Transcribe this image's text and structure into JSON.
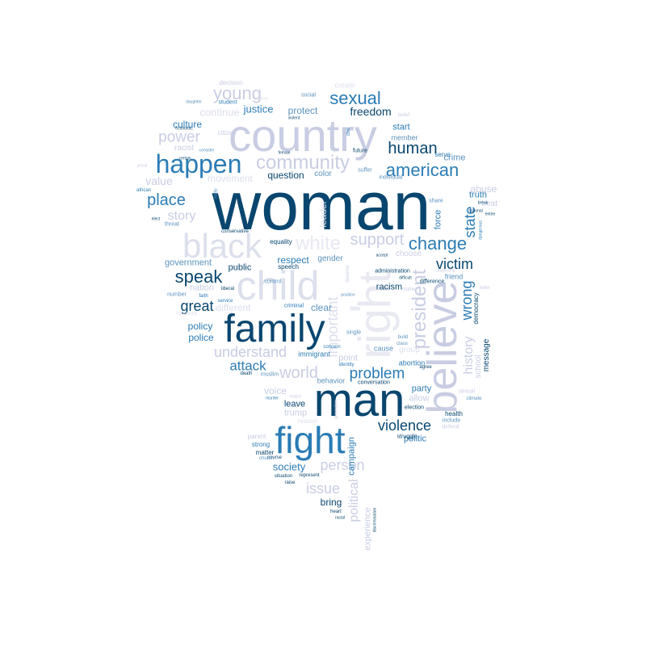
{
  "palette": {
    "navy": "#08466f",
    "blue": "#2b7cb5",
    "mid": "#5b92be",
    "lavender": "#c9cde3",
    "pale": "#dcdfec",
    "faint": "#e8e9f2"
  },
  "words": [
    {
      "text": "woman",
      "color": "#08466f"
    },
    {
      "text": "country",
      "color": "#c9cde3"
    },
    {
      "text": "believe",
      "color": "#c9cde3"
    },
    {
      "text": "man",
      "color": "#08466f"
    },
    {
      "text": "right",
      "color": "#e8e9f2"
    },
    {
      "text": "family",
      "color": "#08466f"
    },
    {
      "text": "child",
      "color": "#dcdfec"
    },
    {
      "text": "black",
      "color": "#dcdfec"
    },
    {
      "text": "fight",
      "color": "#2b7cb5"
    },
    {
      "text": "happen",
      "color": "#2b7cb5"
    },
    {
      "text": "community",
      "color": "#c9cde3"
    },
    {
      "text": "american",
      "color": "#2b7cb5"
    },
    {
      "text": "sexual",
      "color": "#2b7cb5"
    },
    {
      "text": "president",
      "color": "#c9cde3"
    },
    {
      "text": "young",
      "color": "#c9cde3"
    },
    {
      "text": "human",
      "color": "#08466f"
    },
    {
      "text": "change",
      "color": "#2b7cb5"
    },
    {
      "text": "white",
      "color": "#e8e9f2"
    },
    {
      "text": "support",
      "color": "#c9cde3"
    },
    {
      "text": "speak",
      "color": "#08466f"
    },
    {
      "text": "place",
      "color": "#2b7cb5"
    },
    {
      "text": "story",
      "color": "#c9cde3"
    },
    {
      "text": "power",
      "color": "#c9cde3"
    },
    {
      "text": "great",
      "color": "#08466f"
    },
    {
      "text": "victim",
      "color": "#08466f"
    },
    {
      "text": "wrong",
      "color": "#2b7cb5"
    },
    {
      "text": "history",
      "color": "#c9cde3"
    },
    {
      "text": "state",
      "color": "#2b7cb5"
    },
    {
      "text": "important",
      "color": "#dcdfec"
    },
    {
      "text": "understand",
      "color": "#c9cde3"
    },
    {
      "text": "attack",
      "color": "#2b7cb5"
    },
    {
      "text": "world",
      "color": "#c9cde3"
    },
    {
      "text": "problem",
      "color": "#2b7cb5"
    },
    {
      "text": "violence",
      "color": "#08466f"
    },
    {
      "text": "person",
      "color": "#c9cde3"
    },
    {
      "text": "issue",
      "color": "#c9cde3"
    },
    {
      "text": "society",
      "color": "#2b7cb5"
    },
    {
      "text": "political",
      "color": "#c9cde3"
    },
    {
      "text": "freedom",
      "color": "#08466f"
    },
    {
      "text": "justice",
      "color": "#2b7cb5"
    },
    {
      "text": "protect",
      "color": "#5b92be"
    },
    {
      "text": "value",
      "color": "#c9cde3"
    },
    {
      "text": "culture",
      "color": "#2b7cb5"
    },
    {
      "text": "continue",
      "color": "#dcdfec"
    },
    {
      "text": "movement",
      "color": "#dcdfec"
    },
    {
      "text": "question",
      "color": "#08466f"
    },
    {
      "text": "color",
      "color": "#5b92be"
    },
    {
      "text": "truth",
      "color": "#2b7cb5"
    },
    {
      "text": "abuse",
      "color": "#c9cde3"
    },
    {
      "text": "crime",
      "color": "#5b92be"
    },
    {
      "text": "start",
      "color": "#2b7cb5"
    },
    {
      "text": "member",
      "color": "#5b92be"
    },
    {
      "text": "respect",
      "color": "#2b7cb5"
    },
    {
      "text": "gender",
      "color": "#5b92be"
    },
    {
      "text": "public",
      "color": "#08466f"
    },
    {
      "text": "government",
      "color": "#5b92be"
    },
    {
      "text": "policy",
      "color": "#2b7cb5"
    },
    {
      "text": "police",
      "color": "#2b7cb5"
    },
    {
      "text": "different",
      "color": "#dcdfec"
    },
    {
      "text": "racism",
      "color": "#08466f"
    },
    {
      "text": "nation",
      "color": "#c9cde3"
    },
    {
      "text": "clear",
      "color": "#5b92be"
    },
    {
      "text": "leave",
      "color": "#08466f"
    },
    {
      "text": "voice",
      "color": "#c9cde3"
    },
    {
      "text": "trump",
      "color": "#c9cde3"
    },
    {
      "text": "party",
      "color": "#2b7cb5"
    },
    {
      "text": "allow",
      "color": "#c9cde3"
    },
    {
      "text": "politic",
      "color": "#2b7cb5"
    },
    {
      "text": "bring",
      "color": "#08466f"
    },
    {
      "text": "experience",
      "color": "#c9cde3"
    },
    {
      "text": "campaign",
      "color": "#2b7cb5"
    },
    {
      "text": "force",
      "color": "#2b7cb5"
    },
    {
      "text": "friend",
      "color": "#5b92be"
    },
    {
      "text": "choose",
      "color": "#c9cde3"
    },
    {
      "text": "school",
      "color": "#c9cde3"
    },
    {
      "text": "message",
      "color": "#08466f"
    },
    {
      "text": "treat",
      "color": "#c9cde3"
    },
    {
      "text": "leader",
      "color": "#dcdfec"
    },
    {
      "text": "point",
      "color": "#c9cde3"
    },
    {
      "text": "cause",
      "color": "#5b92be"
    },
    {
      "text": "group",
      "color": "#dcdfec"
    },
    {
      "text": "abortion",
      "color": "#2b7cb5"
    },
    {
      "text": "behavior",
      "color": "#5b92be"
    },
    {
      "text": "immigrant",
      "color": "#2b7cb5"
    },
    {
      "text": "equality",
      "color": "#08466f"
    },
    {
      "text": "speech",
      "color": "#08466f"
    },
    {
      "text": "control",
      "color": "#5b92be"
    },
    {
      "text": "muslim",
      "color": "#5b92be"
    },
    {
      "text": "matter",
      "color": "#08466f"
    },
    {
      "text": "strong",
      "color": "#2b7cb5"
    },
    {
      "text": "parent",
      "color": "#c9cde3"
    },
    {
      "text": "health",
      "color": "#08466f"
    },
    {
      "text": "include",
      "color": "#5b92be"
    },
    {
      "text": "defend",
      "color": "#c9cde3"
    },
    {
      "text": "struggle",
      "color": "#08466f"
    },
    {
      "text": "election",
      "color": "#08466f"
    },
    {
      "text": "difference",
      "color": "#08466f"
    },
    {
      "text": "administration",
      "color": "#08466f"
    },
    {
      "text": "individual",
      "color": "#5b92be"
    },
    {
      "text": "future",
      "color": "#08466f"
    },
    {
      "text": "suffer",
      "color": "#5b92be"
    },
    {
      "text": "serve",
      "color": "#2b7cb5"
    },
    {
      "text": "democracy",
      "color": "#08466f"
    },
    {
      "text": "citizen",
      "color": "#c9cde3"
    },
    {
      "text": "racist",
      "color": "#c9cde3"
    },
    {
      "text": "decision",
      "color": "#c9cde3"
    },
    {
      "text": "create",
      "color": "#dcdfec"
    },
    {
      "text": "social",
      "color": "#5b92be"
    },
    {
      "text": "student",
      "color": "#2b7cb5"
    },
    {
      "text": "number",
      "color": "#5b92be"
    },
    {
      "text": "faith",
      "color": "#2b7cb5"
    },
    {
      "text": "moment",
      "color": "#dcdfec"
    },
    {
      "text": "liberal",
      "color": "#08466f"
    },
    {
      "text": "service",
      "color": "#2b7cb5"
    },
    {
      "text": "criminal",
      "color": "#2b7cb5"
    },
    {
      "text": "little",
      "color": "#c9cde3"
    },
    {
      "text": "single",
      "color": "#5b92be"
    },
    {
      "text": "concern",
      "color": "#2b7cb5"
    },
    {
      "text": "identity",
      "color": "#2b7cb5"
    },
    {
      "text": "conversation",
      "color": "#08466f"
    },
    {
      "text": "reason",
      "color": "#dcdfec"
    },
    {
      "text": "course",
      "color": "#08466f"
    },
    {
      "text": "church",
      "color": "#5b92be"
    },
    {
      "text": "situation",
      "color": "#08466f"
    },
    {
      "text": "represent",
      "color": "#08466f"
    },
    {
      "text": "raise",
      "color": "#08466f"
    },
    {
      "text": "heart",
      "color": "#08466f"
    },
    {
      "text": "racial",
      "color": "#08466f"
    },
    {
      "text": "discrimination",
      "color": "#08466f"
    },
    {
      "text": "murder",
      "color": "#2b7cb5"
    },
    {
      "text": "realize",
      "color": "#c9cde3"
    },
    {
      "text": "generation",
      "color": "#c9cde3"
    },
    {
      "text": "death",
      "color": "#08466f"
    },
    {
      "text": "agree",
      "color": "#08466f"
    },
    {
      "text": "class",
      "color": "#5b92be"
    },
    {
      "text": "build",
      "color": "#5b92be"
    },
    {
      "text": "climate",
      "color": "#5b92be"
    },
    {
      "text": "sexual",
      "color": "#c9cde3"
    },
    {
      "text": "voter",
      "color": "#c9cde3"
    },
    {
      "text": "leadership",
      "color": "#c9cde3"
    },
    {
      "text": "mother",
      "color": "#c9cde3"
    },
    {
      "text": "difficult",
      "color": "#08466f"
    },
    {
      "text": "deserve",
      "color": "#c9cde3"
    },
    {
      "text": "share",
      "color": "#5b92be"
    },
    {
      "text": "dangerous",
      "color": "#2b7cb5"
    },
    {
      "text": "entire",
      "color": "#08466f"
    },
    {
      "text": "break",
      "color": "#08466f"
    },
    {
      "text": "national",
      "color": "#08466f"
    },
    {
      "text": "threat",
      "color": "#5b92be"
    },
    {
      "text": "conservative",
      "color": "#08466f"
    },
    {
      "text": "elect",
      "color": "#08466f"
    },
    {
      "text": "african",
      "color": "#2b7cb5"
    },
    {
      "text": "certain",
      "color": "#08466f"
    },
    {
      "text": "economic",
      "color": "#08466f"
    },
    {
      "text": "daughter",
      "color": "#5b92be"
    },
    {
      "text": "blame",
      "color": "#dcdfec"
    },
    {
      "text": "proud",
      "color": "#c9cde3"
    },
    {
      "text": "consider",
      "color": "#5b92be"
    },
    {
      "text": "violent",
      "color": "#08466f"
    },
    {
      "text": "civil",
      "color": "#2b7cb5"
    },
    {
      "text": "female",
      "color": "#08466f"
    },
    {
      "text": "accept",
      "color": "#08466f"
    },
    {
      "text": "reality",
      "color": "#5b92be"
    },
    {
      "text": "position",
      "color": "#5b92be"
    },
    {
      "text": "belief",
      "color": "#c9cde3"
    }
  ]
}
